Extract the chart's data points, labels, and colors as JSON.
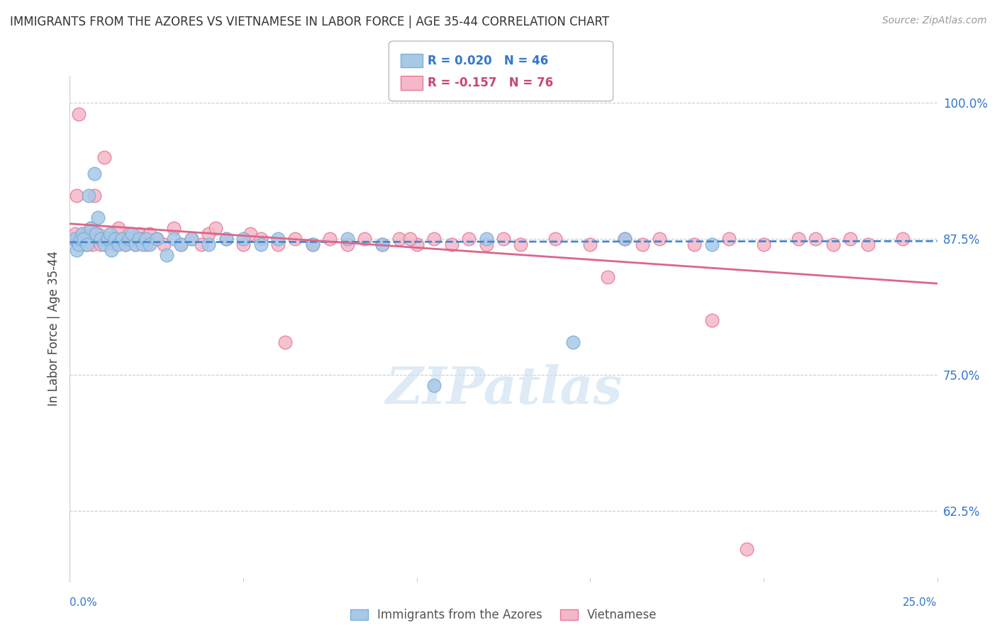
{
  "title": "IMMIGRANTS FROM THE AZORES VS VIETNAMESE IN LABOR FORCE | AGE 35-44 CORRELATION CHART",
  "source": "Source: ZipAtlas.com",
  "ylabel": "In Labor Force | Age 35-44",
  "legend_label1": "Immigrants from the Azores",
  "legend_label2": "Vietnamese",
  "R1": 0.02,
  "N1": 46,
  "R2": -0.157,
  "N2": 76,
  "color_blue": "#a8c8e8",
  "color_pink": "#f4b8c8",
  "color_blue_edge": "#7aafd4",
  "color_pink_edge": "#e87898",
  "color_blue_line": "#4488cc",
  "color_pink_line": "#dd6688",
  "color_text_blue": "#3377cc",
  "color_text_pink": "#cc4477",
  "color_grid": "#cccccc",
  "color_border": "#cccccc",
  "xlim": [
    0.0,
    25.0
  ],
  "ylim": [
    56.0,
    102.5
  ],
  "yticks": [
    62.5,
    75.0,
    87.5,
    100.0
  ],
  "watermark": "ZIPatlas",
  "blue_slope": 0.004,
  "blue_intercept": 87.2,
  "pink_slope": -0.22,
  "pink_intercept": 88.9,
  "blue_dots_x": [
    0.15,
    0.2,
    0.25,
    0.3,
    0.35,
    0.4,
    0.5,
    0.55,
    0.6,
    0.7,
    0.75,
    0.8,
    0.9,
    1.0,
    1.1,
    1.15,
    1.2,
    1.3,
    1.4,
    1.5,
    1.6,
    1.7,
    1.8,
    1.9,
    2.0,
    2.1,
    2.2,
    2.3,
    2.5,
    2.8,
    3.0,
    3.2,
    3.5,
    4.0,
    4.5,
    5.0,
    5.5,
    6.0,
    7.0,
    8.0,
    9.0,
    10.5,
    12.0,
    14.5,
    16.0,
    18.5
  ],
  "blue_dots_y": [
    87.5,
    86.5,
    87.0,
    87.5,
    88.0,
    87.5,
    87.0,
    91.5,
    88.5,
    93.5,
    88.0,
    89.5,
    87.5,
    87.0,
    87.5,
    88.0,
    86.5,
    87.5,
    87.0,
    87.5,
    87.0,
    87.5,
    88.0,
    87.0,
    87.5,
    87.0,
    87.5,
    87.0,
    87.5,
    86.0,
    87.5,
    87.0,
    87.5,
    87.0,
    87.5,
    87.5,
    87.0,
    87.5,
    87.0,
    87.5,
    87.0,
    74.0,
    87.5,
    78.0,
    87.5,
    87.0
  ],
  "pink_dots_x": [
    0.1,
    0.15,
    0.2,
    0.25,
    0.3,
    0.35,
    0.4,
    0.45,
    0.5,
    0.55,
    0.6,
    0.65,
    0.7,
    0.75,
    0.8,
    0.9,
    1.0,
    1.1,
    1.2,
    1.3,
    1.4,
    1.5,
    1.6,
    1.7,
    1.8,
    1.9,
    2.0,
    2.1,
    2.2,
    2.3,
    2.5,
    2.7,
    3.0,
    3.2,
    3.5,
    3.8,
    4.0,
    4.5,
    5.0,
    5.2,
    5.5,
    6.0,
    6.5,
    7.0,
    7.5,
    8.0,
    8.5,
    9.0,
    9.5,
    10.0,
    10.5,
    11.0,
    11.5,
    12.0,
    12.5,
    13.0,
    14.0,
    15.0,
    16.0,
    16.5,
    17.0,
    18.0,
    19.0,
    20.0,
    21.0,
    22.0,
    22.5,
    23.0,
    24.0,
    4.2,
    6.2,
    9.8,
    15.5,
    18.5,
    19.5,
    21.5
  ],
  "pink_dots_y": [
    87.5,
    88.0,
    91.5,
    99.0,
    87.5,
    88.0,
    87.5,
    87.0,
    88.0,
    87.5,
    88.5,
    87.0,
    91.5,
    87.5,
    88.0,
    87.0,
    95.0,
    87.5,
    88.0,
    87.0,
    88.5,
    87.5,
    87.0,
    88.0,
    87.5,
    87.0,
    88.0,
    87.5,
    87.0,
    88.0,
    87.5,
    87.0,
    88.5,
    87.0,
    87.5,
    87.0,
    88.0,
    87.5,
    87.0,
    88.0,
    87.5,
    87.0,
    87.5,
    87.0,
    87.5,
    87.0,
    87.5,
    87.0,
    87.5,
    87.0,
    87.5,
    87.0,
    87.5,
    87.0,
    87.5,
    87.0,
    87.5,
    87.0,
    87.5,
    87.0,
    87.5,
    87.0,
    87.5,
    87.0,
    87.5,
    87.0,
    87.5,
    87.0,
    87.5,
    88.5,
    78.0,
    87.5,
    84.0,
    80.0,
    59.0,
    87.5
  ]
}
